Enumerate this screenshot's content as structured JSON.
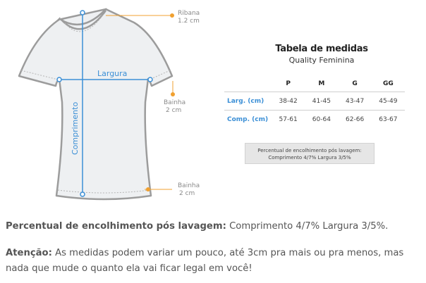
{
  "diagram": {
    "labels": {
      "ribana": "Ribana",
      "ribana_size": "1.2 cm",
      "largura": "Largura",
      "bainha_manga": "Bainha",
      "bainha_manga_size": "2 cm",
      "comprimento": "Comprimento",
      "bainha_barra": "Bainha",
      "bainha_barra_size": "2 cm"
    },
    "colors": {
      "shirt_fill": "#eef0f2",
      "shirt_stroke": "#9c9c9c",
      "measure_blue": "#3b8fd6",
      "marker_orange": "#f0a030"
    }
  },
  "size_table": {
    "title": "Tabela de medidas",
    "subtitle": "Quality Feminina",
    "sizes": [
      "P",
      "M",
      "G",
      "GG"
    ],
    "rows": [
      {
        "label": "Larg. (cm)",
        "values": [
          "38-42",
          "41-45",
          "43-47",
          "45-49"
        ]
      },
      {
        "label": "Comp. (cm)",
        "values": [
          "57-61",
          "60-64",
          "62-66",
          "63-67"
        ]
      }
    ],
    "shrink_box": {
      "line1": "Percentual de encolhimento pós lavagem:",
      "line2": "Comprimento 4/7% Largura 3/5%"
    }
  },
  "notes": {
    "shrink_label": "Percentual de encolhimento pós lavagem:",
    "shrink_text": " Comprimento 4/7% Largura 3/5%.",
    "attention_label": "Atenção:",
    "attention_text": " As medidas podem variar um pouco, até 3cm pra mais ou pra menos, mas nada que mude o quanto ela vai ficar legal em você!"
  }
}
